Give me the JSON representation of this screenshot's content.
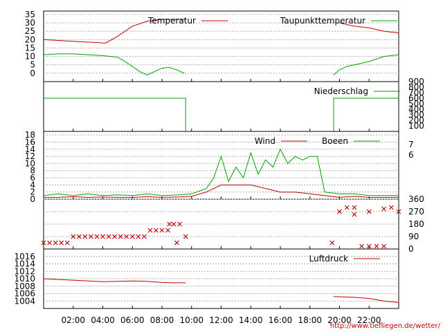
{
  "time_ticks": [
    "02:00",
    "04:00",
    "06:00",
    "08:00",
    "10:00",
    "12:00",
    "14:00",
    "16:00",
    "18:00",
    "20:00",
    "22:00"
  ],
  "footer_url": "http://www.tiefliegen.de/wetter/",
  "colors": {
    "red": "#c00000",
    "green": "#00a000",
    "grid": "#aaaaaa",
    "axis": "#000000"
  },
  "chart_data": [
    {
      "type": "line",
      "x_unit": "hour",
      "xlim": [
        0,
        24
      ],
      "ylim": [
        -5,
        37
      ],
      "ytick_labels": [
        "0",
        "5",
        "10",
        "15",
        "20",
        "25",
        "30",
        "35"
      ],
      "legend_position": "top",
      "series": [
        {
          "name": "Temperatur",
          "color": "red",
          "x": [
            0,
            2,
            4,
            4.2,
            5,
            6,
            7,
            8,
            9,
            9.6
          ],
          "values": [
            20,
            19,
            18,
            18,
            22,
            28,
            31,
            32,
            32,
            32
          ]
        },
        {
          "name": "Taupunkttemperatur",
          "color": "green",
          "x": [
            0,
            1,
            2,
            3,
            4,
            5,
            5.5,
            6,
            6.5,
            7,
            7.5,
            8,
            8.5,
            9,
            9.5
          ],
          "values": [
            11,
            11.5,
            11.5,
            11,
            10.5,
            9.5,
            7,
            4,
            1,
            -1,
            1,
            3,
            3.5,
            2,
            0
          ]
        }
      ],
      "series_after_gap": [
        {
          "name": "Temperatur",
          "color": "red",
          "x": [
            20,
            21,
            22,
            23,
            24
          ],
          "values": [
            30,
            28,
            27,
            25,
            24
          ]
        },
        {
          "name": "Taupunkttemperatur",
          "color": "green",
          "x": [
            19.6,
            20,
            20.5,
            21,
            22,
            23,
            24
          ],
          "values": [
            -1,
            2,
            4,
            5,
            7,
            10,
            11
          ]
        }
      ]
    },
    {
      "type": "line",
      "x_unit": "hour",
      "xlim": [
        0,
        24
      ],
      "ylim": [
        0,
        900
      ],
      "ytick_labels": [
        "100",
        "200",
        "300",
        "400",
        "500",
        "600",
        "700",
        "800",
        "900"
      ],
      "legend_position": "top",
      "series": [
        {
          "name": "Niederschlag",
          "color": "green",
          "x": [
            0,
            9.6,
            9.6
          ],
          "values": [
            600,
            600,
            0
          ]
        }
      ],
      "series_after_gap": [
        {
          "name": "Niederschlag",
          "color": "green",
          "x": [
            19.6,
            19.6,
            24
          ],
          "values": [
            0,
            600,
            600
          ]
        }
      ]
    },
    {
      "type": "line",
      "x_unit": "hour",
      "xlim": [
        0,
        24
      ],
      "ylim": [
        0,
        19
      ],
      "ytick_labels": [
        "0",
        "2",
        "4",
        "6",
        "8",
        "10",
        "12",
        "14",
        "16",
        "18"
      ],
      "right_tick_labels": [
        "6",
        "7"
      ],
      "legend_position": "top",
      "series": [
        {
          "name": "Wind",
          "color": "red",
          "x": [
            0,
            1,
            2,
            3,
            4,
            5,
            6,
            7,
            8,
            9,
            10,
            11,
            12,
            13,
            14,
            15,
            16,
            17,
            18,
            19,
            20,
            21,
            22,
            23,
            24
          ],
          "values": [
            0.5,
            0.5,
            0.7,
            0.5,
            0.6,
            0.5,
            0.5,
            0.7,
            0.5,
            0.6,
            0.8,
            2,
            4,
            4,
            4,
            3,
            2,
            2,
            1.5,
            1,
            0.5,
            0.8,
            0.5,
            0.5,
            0.5
          ]
        },
        {
          "name": "Boeen",
          "color": "green",
          "x": [
            0,
            1,
            2,
            3,
            4,
            5,
            6,
            7,
            8,
            9,
            10,
            11,
            11.5,
            12,
            12.5,
            13,
            13.5,
            14,
            14.5,
            15,
            15.5,
            16,
            16.5,
            17,
            17.5,
            18,
            18.5,
            19,
            20,
            21,
            22,
            23,
            24
          ],
          "values": [
            1,
            1.5,
            1,
            1.5,
            1,
            1.2,
            1,
            1.5,
            1,
            1.2,
            1.5,
            3,
            6,
            12,
            5,
            9,
            6,
            13,
            7,
            11,
            9,
            14,
            10,
            12,
            11,
            12,
            12,
            2,
            1.5,
            1.5,
            1,
            1,
            1
          ]
        }
      ]
    },
    {
      "type": "scatter",
      "x_unit": "hour",
      "xlim": [
        0,
        24
      ],
      "ylim": [
        0,
        360
      ],
      "ytick_labels": [
        "0",
        "90",
        "180",
        "270",
        "360"
      ],
      "series": [
        {
          "name": "",
          "color": "red",
          "x": [
            0,
            0.4,
            0.8,
            1.2,
            1.6,
            2,
            2.4,
            2.8,
            3.2,
            3.6,
            4,
            4.4,
            4.8,
            5.2,
            5.6,
            6,
            6.4,
            6.8,
            7.2,
            7.6,
            8,
            8.4,
            8.8,
            9.2,
            9.6,
            9,
            8.5,
            19.5,
            20,
            20.5,
            21,
            21.5,
            22,
            22.5,
            23,
            23.5,
            24,
            21,
            22,
            23
          ],
          "values": [
            45,
            45,
            45,
            45,
            45,
            90,
            90,
            90,
            90,
            90,
            90,
            90,
            90,
            90,
            90,
            90,
            90,
            90,
            135,
            135,
            135,
            135,
            180,
            180,
            90,
            45,
            180,
            45,
            270,
            300,
            300,
            20,
            20,
            20,
            20,
            300,
            270,
            250,
            270,
            290
          ]
        }
      ]
    },
    {
      "type": "line",
      "x_unit": "hour",
      "xlim": [
        0,
        24
      ],
      "ylim": [
        1002,
        1018
      ],
      "ytick_labels": [
        "1004",
        "1006",
        "1008",
        "1010",
        "1012",
        "1014",
        "1016"
      ],
      "legend_position": "top-right",
      "series": [
        {
          "name": "Luftdruck",
          "color": "red",
          "x": [
            0,
            2,
            4,
            6,
            7,
            8,
            9,
            9.6
          ],
          "values": [
            1010,
            1009.6,
            1009.2,
            1009.4,
            1009.3,
            1009,
            1008.9,
            1008.9
          ]
        }
      ],
      "series_after_gap": [
        {
          "name": "Luftdruck",
          "color": "red",
          "x": [
            19.6,
            21,
            22,
            23,
            24
          ],
          "values": [
            1005.2,
            1005,
            1004.7,
            1004,
            1003.6
          ]
        }
      ]
    }
  ]
}
